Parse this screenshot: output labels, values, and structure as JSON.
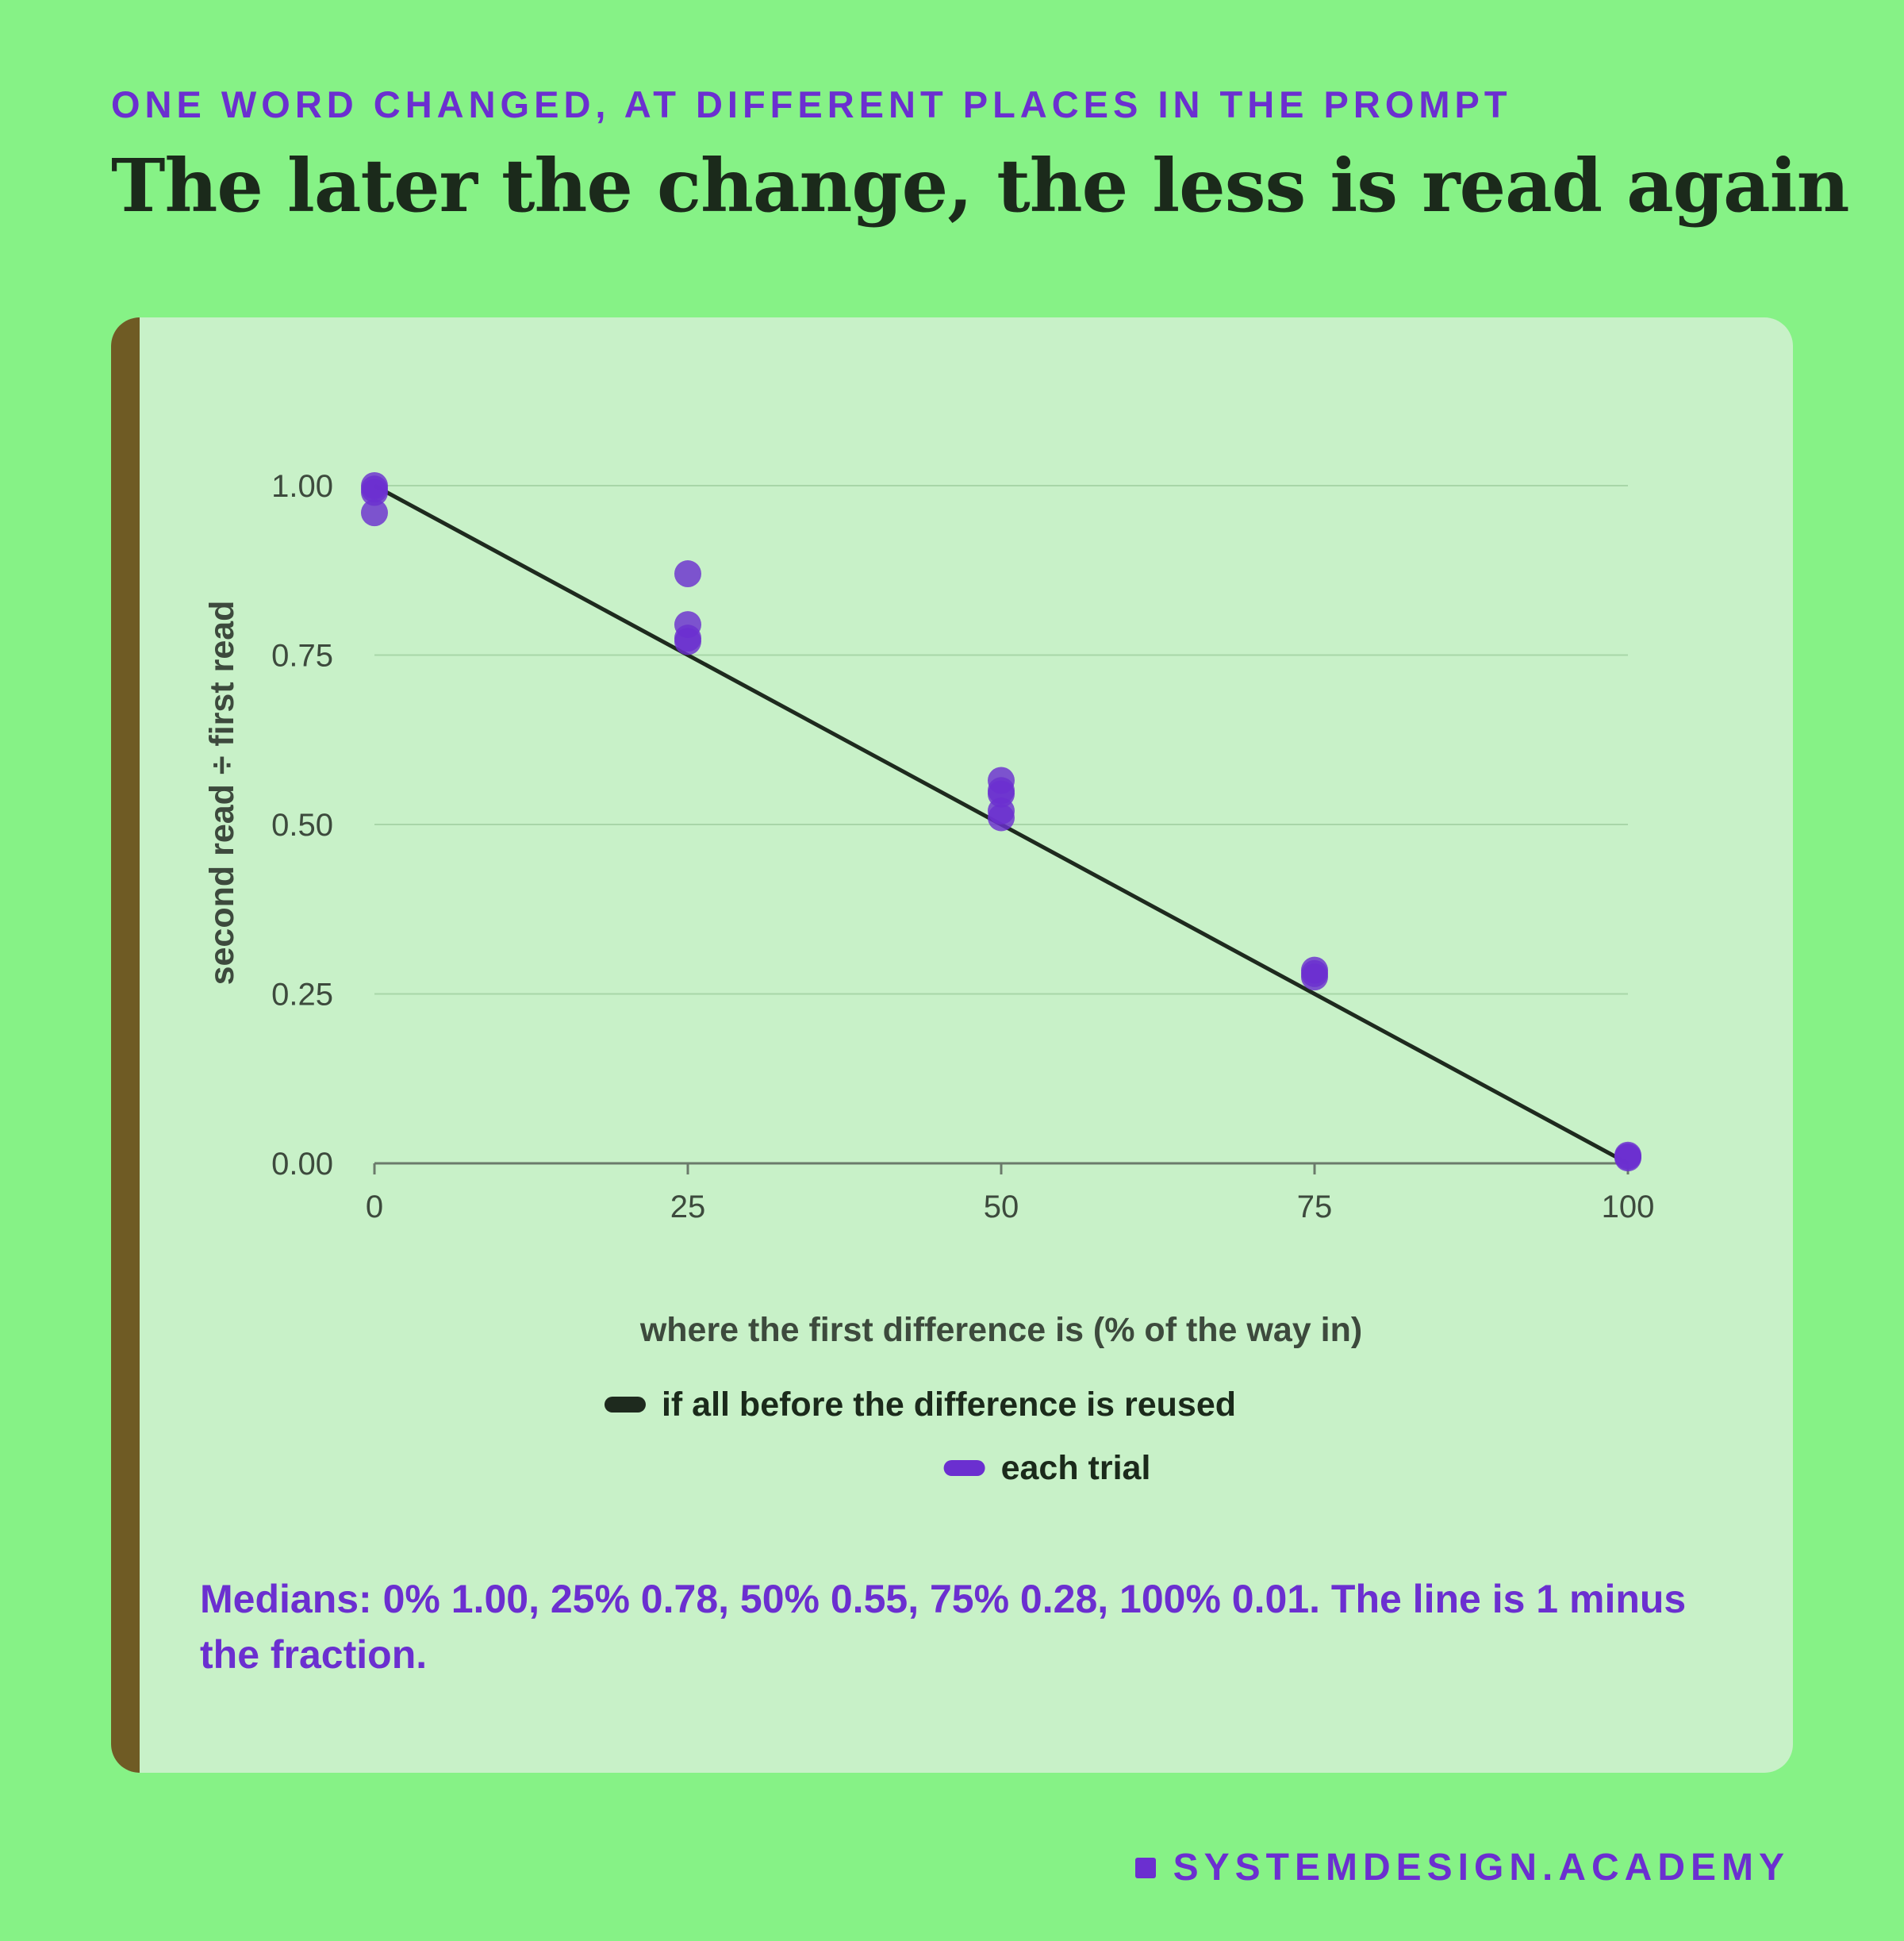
{
  "header": {
    "kicker": "ONE WORD CHANGED, AT DIFFERENT PLACES IN THE PROMPT",
    "title": "The later the change, the less is read again"
  },
  "chart_data": {
    "type": "scatter",
    "xlabel": "where the first difference is (% of the way in)",
    "ylabel": "second read ÷ first read",
    "xlim": [
      0,
      100
    ],
    "ylim": [
      0,
      1
    ],
    "x_ticks": [
      0,
      25,
      50,
      75,
      100
    ],
    "x_tick_labels": [
      "0",
      "25",
      "50",
      "75",
      "100"
    ],
    "y_ticks": [
      0,
      0.25,
      0.5,
      0.75,
      1.0
    ],
    "y_tick_labels": [
      "0.00",
      "0.25",
      "0.50",
      "0.75",
      "1.00"
    ],
    "grid": "horizontal",
    "legend_placement": "bottom-center",
    "series": [
      {
        "name": "if all before the difference is reused",
        "kind": "line",
        "color": "#1e2a1e",
        "x": [
          0,
          100
        ],
        "y": [
          1.0,
          0.0
        ]
      },
      {
        "name": "each trial",
        "kind": "scatter",
        "color": "#6b2fd0",
        "x": [
          0,
          0,
          0,
          0,
          25,
          25,
          25,
          25,
          50,
          50,
          50,
          50,
          50,
          75,
          75,
          75,
          100,
          100,
          100
        ],
        "y": [
          1.0,
          0.99,
          0.995,
          0.96,
          0.87,
          0.795,
          0.775,
          0.77,
          0.565,
          0.55,
          0.52,
          0.51,
          0.545,
          0.285,
          0.275,
          0.28,
          0.01,
          0.008,
          0.012
        ]
      }
    ]
  },
  "note": "Medians: 0% 1.00, 25% 0.78, 50% 0.55, 75% 0.28, 100% 0.01. The line is 1 minus the fraction.",
  "footer": {
    "brand": "SYSTEMDESIGN.ACADEMY"
  },
  "colors": {
    "background": "#86f286",
    "card": "#c8f1c8",
    "accent_bar": "#6f5b24",
    "purple": "#6b2fd0",
    "ink": "#1b2a1b"
  }
}
